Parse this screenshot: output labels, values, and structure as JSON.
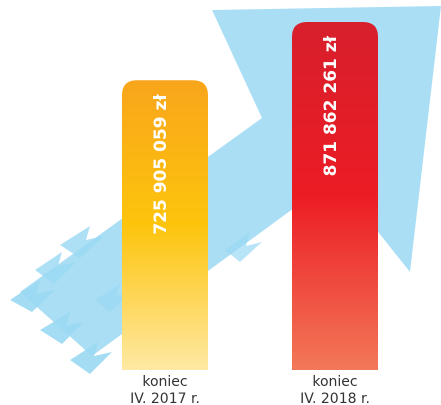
{
  "chart_data": {
    "type": "bar",
    "categories": [
      [
        "koniec",
        "IV. 2017 r."
      ],
      [
        "koniec",
        "IV. 2018 r."
      ]
    ],
    "values": [
      725905059,
      871862261
    ],
    "value_labels": [
      "725 905 059 zł",
      "871 862 261 zł"
    ],
    "colors": [
      [
        "#f8a51b",
        "#fdc40c",
        "#fee9a4"
      ],
      [
        "#d71f2c",
        "#ec1c24",
        "#f27858"
      ]
    ]
  }
}
